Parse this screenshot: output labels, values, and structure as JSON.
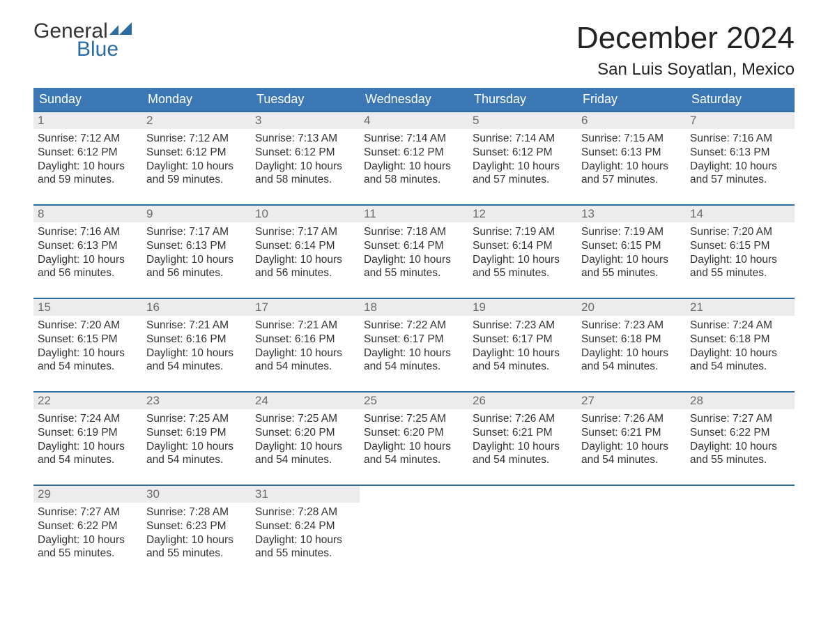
{
  "logo": {
    "text_general": "General",
    "text_blue": "Blue",
    "shape_color": "#2b6ca3"
  },
  "title": "December 2024",
  "location": "San Luis Soyatlan, Mexico",
  "colors": {
    "header_bg": "#3b77b5",
    "header_text": "#ffffff",
    "week_border": "#2b6ca3",
    "day_number_bg": "#ececec",
    "day_number_text": "#6b6b6b",
    "body_text": "#333333",
    "background": "#ffffff"
  },
  "day_headers": [
    "Sunday",
    "Monday",
    "Tuesday",
    "Wednesday",
    "Thursday",
    "Friday",
    "Saturday"
  ],
  "labels": {
    "sunrise": "Sunrise:",
    "sunset": "Sunset:",
    "daylight": "Daylight:"
  },
  "weeks": [
    [
      {
        "n": "1",
        "sunrise": "7:12 AM",
        "sunset": "6:12 PM",
        "daylight_l1": "10 hours",
        "daylight_l2": "and 59 minutes."
      },
      {
        "n": "2",
        "sunrise": "7:12 AM",
        "sunset": "6:12 PM",
        "daylight_l1": "10 hours",
        "daylight_l2": "and 59 minutes."
      },
      {
        "n": "3",
        "sunrise": "7:13 AM",
        "sunset": "6:12 PM",
        "daylight_l1": "10 hours",
        "daylight_l2": "and 58 minutes."
      },
      {
        "n": "4",
        "sunrise": "7:14 AM",
        "sunset": "6:12 PM",
        "daylight_l1": "10 hours",
        "daylight_l2": "and 58 minutes."
      },
      {
        "n": "5",
        "sunrise": "7:14 AM",
        "sunset": "6:12 PM",
        "daylight_l1": "10 hours",
        "daylight_l2": "and 57 minutes."
      },
      {
        "n": "6",
        "sunrise": "7:15 AM",
        "sunset": "6:13 PM",
        "daylight_l1": "10 hours",
        "daylight_l2": "and 57 minutes."
      },
      {
        "n": "7",
        "sunrise": "7:16 AM",
        "sunset": "6:13 PM",
        "daylight_l1": "10 hours",
        "daylight_l2": "and 57 minutes."
      }
    ],
    [
      {
        "n": "8",
        "sunrise": "7:16 AM",
        "sunset": "6:13 PM",
        "daylight_l1": "10 hours",
        "daylight_l2": "and 56 minutes."
      },
      {
        "n": "9",
        "sunrise": "7:17 AM",
        "sunset": "6:13 PM",
        "daylight_l1": "10 hours",
        "daylight_l2": "and 56 minutes."
      },
      {
        "n": "10",
        "sunrise": "7:17 AM",
        "sunset": "6:14 PM",
        "daylight_l1": "10 hours",
        "daylight_l2": "and 56 minutes."
      },
      {
        "n": "11",
        "sunrise": "7:18 AM",
        "sunset": "6:14 PM",
        "daylight_l1": "10 hours",
        "daylight_l2": "and 55 minutes."
      },
      {
        "n": "12",
        "sunrise": "7:19 AM",
        "sunset": "6:14 PM",
        "daylight_l1": "10 hours",
        "daylight_l2": "and 55 minutes."
      },
      {
        "n": "13",
        "sunrise": "7:19 AM",
        "sunset": "6:15 PM",
        "daylight_l1": "10 hours",
        "daylight_l2": "and 55 minutes."
      },
      {
        "n": "14",
        "sunrise": "7:20 AM",
        "sunset": "6:15 PM",
        "daylight_l1": "10 hours",
        "daylight_l2": "and 55 minutes."
      }
    ],
    [
      {
        "n": "15",
        "sunrise": "7:20 AM",
        "sunset": "6:15 PM",
        "daylight_l1": "10 hours",
        "daylight_l2": "and 54 minutes."
      },
      {
        "n": "16",
        "sunrise": "7:21 AM",
        "sunset": "6:16 PM",
        "daylight_l1": "10 hours",
        "daylight_l2": "and 54 minutes."
      },
      {
        "n": "17",
        "sunrise": "7:21 AM",
        "sunset": "6:16 PM",
        "daylight_l1": "10 hours",
        "daylight_l2": "and 54 minutes."
      },
      {
        "n": "18",
        "sunrise": "7:22 AM",
        "sunset": "6:17 PM",
        "daylight_l1": "10 hours",
        "daylight_l2": "and 54 minutes."
      },
      {
        "n": "19",
        "sunrise": "7:23 AM",
        "sunset": "6:17 PM",
        "daylight_l1": "10 hours",
        "daylight_l2": "and 54 minutes."
      },
      {
        "n": "20",
        "sunrise": "7:23 AM",
        "sunset": "6:18 PM",
        "daylight_l1": "10 hours",
        "daylight_l2": "and 54 minutes."
      },
      {
        "n": "21",
        "sunrise": "7:24 AM",
        "sunset": "6:18 PM",
        "daylight_l1": "10 hours",
        "daylight_l2": "and 54 minutes."
      }
    ],
    [
      {
        "n": "22",
        "sunrise": "7:24 AM",
        "sunset": "6:19 PM",
        "daylight_l1": "10 hours",
        "daylight_l2": "and 54 minutes."
      },
      {
        "n": "23",
        "sunrise": "7:25 AM",
        "sunset": "6:19 PM",
        "daylight_l1": "10 hours",
        "daylight_l2": "and 54 minutes."
      },
      {
        "n": "24",
        "sunrise": "7:25 AM",
        "sunset": "6:20 PM",
        "daylight_l1": "10 hours",
        "daylight_l2": "and 54 minutes."
      },
      {
        "n": "25",
        "sunrise": "7:25 AM",
        "sunset": "6:20 PM",
        "daylight_l1": "10 hours",
        "daylight_l2": "and 54 minutes."
      },
      {
        "n": "26",
        "sunrise": "7:26 AM",
        "sunset": "6:21 PM",
        "daylight_l1": "10 hours",
        "daylight_l2": "and 54 minutes."
      },
      {
        "n": "27",
        "sunrise": "7:26 AM",
        "sunset": "6:21 PM",
        "daylight_l1": "10 hours",
        "daylight_l2": "and 54 minutes."
      },
      {
        "n": "28",
        "sunrise": "7:27 AM",
        "sunset": "6:22 PM",
        "daylight_l1": "10 hours",
        "daylight_l2": "and 55 minutes."
      }
    ],
    [
      {
        "n": "29",
        "sunrise": "7:27 AM",
        "sunset": "6:22 PM",
        "daylight_l1": "10 hours",
        "daylight_l2": "and 55 minutes."
      },
      {
        "n": "30",
        "sunrise": "7:28 AM",
        "sunset": "6:23 PM",
        "daylight_l1": "10 hours",
        "daylight_l2": "and 55 minutes."
      },
      {
        "n": "31",
        "sunrise": "7:28 AM",
        "sunset": "6:24 PM",
        "daylight_l1": "10 hours",
        "daylight_l2": "and 55 minutes."
      },
      {
        "empty": true
      },
      {
        "empty": true
      },
      {
        "empty": true
      },
      {
        "empty": true
      }
    ]
  ]
}
